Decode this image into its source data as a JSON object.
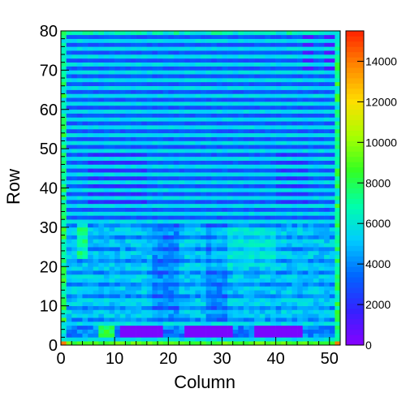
{
  "chart_data": {
    "type": "heatmap",
    "title": "",
    "xlabel": "Column",
    "ylabel": "Row",
    "xlim": [
      0,
      52
    ],
    "ylim": [
      0,
      80
    ],
    "x_ticks": [
      "0",
      "10",
      "20",
      "30",
      "40",
      "50"
    ],
    "y_ticks": [
      "0",
      "10",
      "20",
      "30",
      "40",
      "50",
      "60",
      "70",
      "80"
    ],
    "colorbar": {
      "range": [
        0,
        15500
      ],
      "ticks": [
        "0",
        "2000",
        "4000",
        "6000",
        "8000",
        "10000",
        "12000",
        "14000"
      ],
      "palette": [
        "#8800ff",
        "#3322ff",
        "#0066ff",
        "#00ccff",
        "#00ffaa",
        "#33ff22",
        "#aaff00",
        "#ffdd00",
        "#ff8800",
        "#ff2200"
      ]
    },
    "value_description": {
      "bottom_band": {
        "rows": [
          0,
          1
        ],
        "value": 9000
      },
      "low_gaps": {
        "rows": [
          2,
          5
        ],
        "cols": [
          [
            11,
            19
          ],
          [
            23,
            32
          ],
          [
            36,
            45
          ]
        ],
        "value": 300
      },
      "upper_region": {
        "rows": [
          31,
          80
        ],
        "typical_value": 2500,
        "stripe_value": 5200
      },
      "lower_region": {
        "rows": [
          5,
          31
        ],
        "typical_value": 4500
      }
    }
  }
}
